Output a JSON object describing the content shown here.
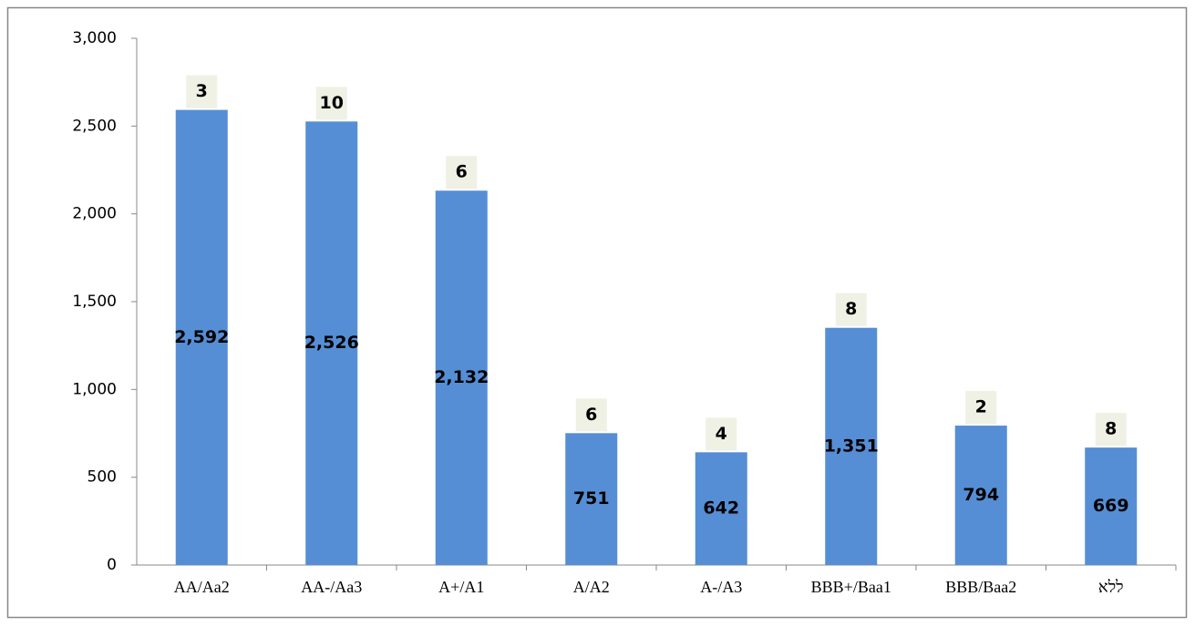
{
  "chart_data": {
    "type": "bar",
    "categories": [
      "AA/Aa2",
      "AA-/Aa3",
      "A+/A1",
      "A/A2",
      "A-/A3",
      "BBB+/Baa1",
      "BBB/Baa2",
      "ללא"
    ],
    "values": [
      2592,
      2526,
      2132,
      751,
      642,
      1351,
      794,
      669
    ],
    "value_labels": [
      "2,592",
      "2,526",
      "2,132",
      "751",
      "642",
      "1,351",
      "794",
      "669"
    ],
    "counts": [
      3,
      10,
      6,
      6,
      4,
      8,
      2,
      8
    ],
    "color": "#558ed5",
    "ylim": [
      0,
      3000
    ],
    "yticks": [
      0,
      500,
      {
        "value": 1000,
        "label": "1,000"
      },
      {
        "value": 1500,
        "label": "1,500"
      },
      {
        "value": 2000,
        "label": "2,000"
      },
      {
        "value": 2500,
        "label": "2,500"
      },
      {
        "value": 3000,
        "label": "3,000"
      }
    ],
    "grid": false
  }
}
